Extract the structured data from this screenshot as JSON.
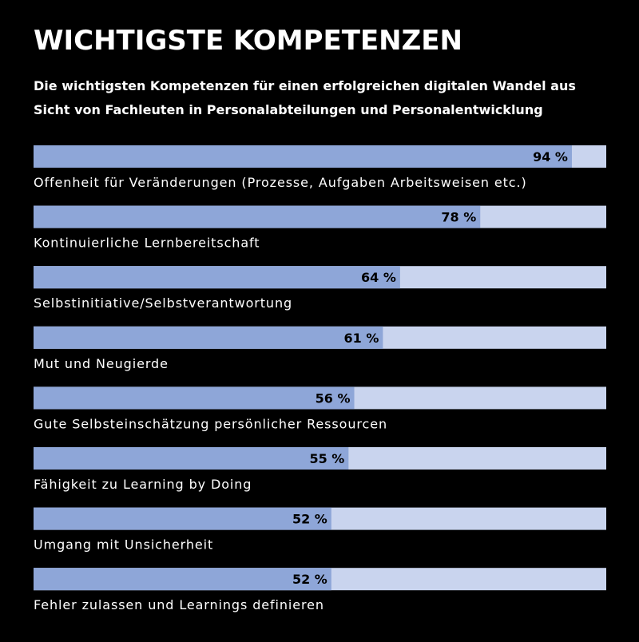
{
  "chart_data": {
    "type": "hbar",
    "title": "WICHTIGSTE KOMPETENZEN",
    "subtitle": [
      "Die wichtigsten Kompetenzen für einen erfolgreichen digitalen Wandel aus",
      "Sicht von Fachleuten in Personalabteilungen und Personalentwicklung"
    ],
    "categories": [
      "Offenheit für Veränderungen (Prozesse, Aufgaben Arbeitsweisen etc.)",
      "Kontinuierliche Lernbereitschaft",
      "Selbstinitiative/Selbstverantwortung",
      "Mut und Neugierde",
      "Gute Selbsteinschätzung persönlicher Ressourcen",
      "Fähigkeit zu Learning by Doing",
      "Umgang mit Unsicherheit",
      "Fehler zulassen und Learnings definieren"
    ],
    "values": [
      94,
      78,
      64,
      61,
      56,
      55,
      52,
      52
    ],
    "value_labels": [
      "94 %",
      "78 %",
      "64 %",
      "61 %",
      "56 %",
      "55 %",
      "52 %",
      "52 %"
    ],
    "xlim": [
      0,
      100
    ],
    "color": "#8ea6d8",
    "track_color": "#c9d4ee"
  }
}
